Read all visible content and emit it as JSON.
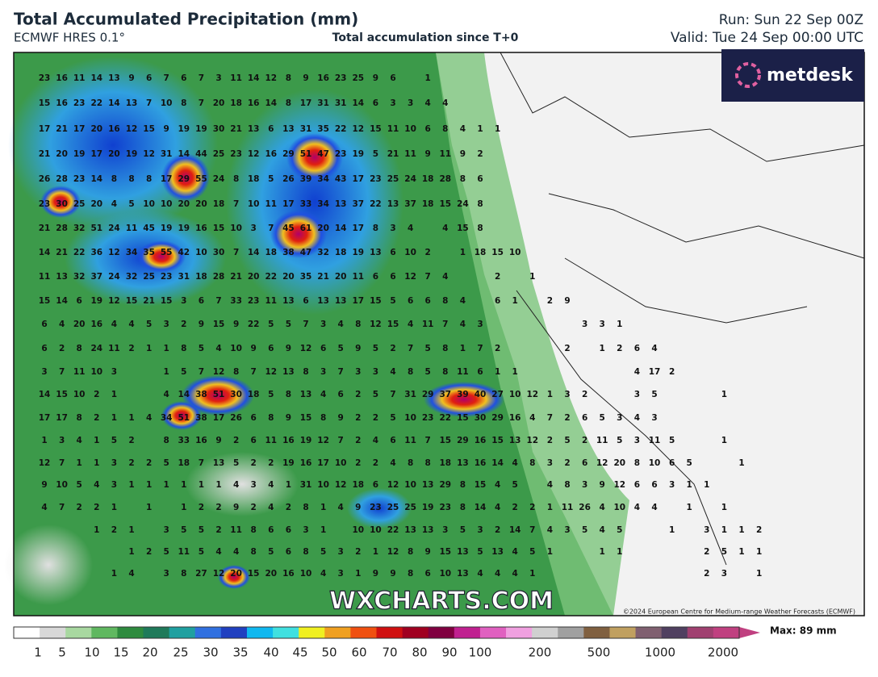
{
  "header": {
    "title": "Total Accumulated Precipitation (mm)",
    "model": "ECMWF HRES 0.1°",
    "subtitle": "Total accumulation since T+0",
    "run": "Run: Sun 22 Sep 00Z",
    "valid": "Valid: Tue 24 Sep 00:00 UTC"
  },
  "logo": "metdesk",
  "watermark": "WXCHARTS.COM",
  "copyright": "©2024 European Centre for Medium-range Weather Forecasts (ECMWF)",
  "legend": {
    "labels": [
      1,
      5,
      10,
      15,
      20,
      25,
      30,
      35,
      40,
      45,
      50,
      60,
      70,
      80,
      90,
      100,
      200,
      500,
      1000,
      2000
    ],
    "max": "Max: 89 mm"
  },
  "grid": {
    "rows": [
      [
        23,
        16,
        11,
        14,
        13,
        9,
        6,
        7,
        6,
        7,
        3,
        11,
        14,
        12,
        8,
        9,
        16,
        23,
        25,
        9,
        6,
        null,
        1
      ],
      [
        15,
        16,
        23,
        22,
        14,
        13,
        7,
        10,
        8,
        7,
        20,
        18,
        16,
        14,
        8,
        17,
        31,
        31,
        14,
        6,
        3,
        3,
        4,
        4
      ],
      [
        17,
        21,
        17,
        20,
        16,
        12,
        15,
        9,
        19,
        19,
        30,
        21,
        13,
        6,
        13,
        31,
        35,
        22,
        12,
        15,
        11,
        10,
        6,
        8,
        4,
        1,
        1
      ],
      [
        21,
        20,
        19,
        17,
        20,
        19,
        12,
        31,
        14,
        44,
        25,
        23,
        12,
        16,
        29,
        51,
        47,
        23,
        19,
        5,
        21,
        11,
        9,
        11,
        9,
        2
      ],
      [
        26,
        28,
        23,
        14,
        8,
        8,
        8,
        17,
        29,
        55,
        24,
        8,
        18,
        5,
        26,
        39,
        34,
        43,
        17,
        23,
        25,
        24,
        18,
        28,
        8,
        6
      ],
      [
        23,
        30,
        25,
        20,
        4,
        5,
        10,
        10,
        20,
        20,
        18,
        7,
        10,
        11,
        17,
        33,
        34,
        13,
        37,
        22,
        13,
        37,
        18,
        15,
        24,
        8
      ],
      [
        21,
        28,
        32,
        51,
        24,
        11,
        45,
        19,
        19,
        16,
        15,
        10,
        3,
        7,
        45,
        61,
        20,
        14,
        17,
        8,
        3,
        4,
        null,
        4,
        15,
        8
      ],
      [
        14,
        21,
        22,
        36,
        12,
        34,
        35,
        55,
        42,
        10,
        30,
        7,
        14,
        18,
        38,
        47,
        32,
        18,
        19,
        13,
        6,
        10,
        2,
        null,
        1,
        18,
        15,
        10
      ],
      [
        11,
        13,
        32,
        37,
        24,
        32,
        25,
        23,
        31,
        18,
        28,
        21,
        20,
        22,
        20,
        35,
        21,
        20,
        11,
        6,
        6,
        12,
        7,
        4,
        null,
        null,
        2,
        null,
        1
      ],
      [
        15,
        14,
        6,
        19,
        12,
        15,
        21,
        15,
        3,
        6,
        7,
        33,
        23,
        11,
        13,
        6,
        13,
        13,
        17,
        15,
        5,
        6,
        6,
        8,
        4,
        null,
        6,
        1,
        null,
        2,
        9
      ],
      [
        6,
        4,
        20,
        16,
        4,
        4,
        5,
        3,
        2,
        9,
        15,
        9,
        22,
        5,
        5,
        7,
        3,
        4,
        8,
        12,
        15,
        4,
        11,
        7,
        4,
        3,
        null,
        null,
        null,
        null,
        null,
        3,
        3,
        1
      ],
      [
        6,
        2,
        8,
        24,
        11,
        2,
        1,
        1,
        8,
        5,
        4,
        10,
        9,
        6,
        9,
        12,
        6,
        5,
        9,
        5,
        2,
        7,
        5,
        8,
        1,
        7,
        2,
        null,
        null,
        null,
        2,
        null,
        1,
        2,
        6,
        4
      ],
      [
        3,
        7,
        11,
        10,
        3,
        null,
        null,
        1,
        5,
        7,
        12,
        8,
        7,
        12,
        13,
        8,
        3,
        7,
        3,
        3,
        4,
        8,
        5,
        8,
        11,
        6,
        1,
        1,
        null,
        null,
        null,
        null,
        null,
        null,
        4,
        17,
        2
      ],
      [
        14,
        15,
        10,
        2,
        1,
        null,
        null,
        4,
        14,
        38,
        51,
        30,
        18,
        5,
        8,
        13,
        4,
        6,
        2,
        5,
        7,
        31,
        29,
        37,
        39,
        40,
        27,
        10,
        12,
        1,
        3,
        2,
        null,
        null,
        3,
        5,
        null,
        null,
        null,
        1
      ],
      [
        17,
        17,
        8,
        2,
        1,
        1,
        4,
        34,
        51,
        38,
        17,
        26,
        6,
        8,
        9,
        15,
        8,
        9,
        2,
        2,
        5,
        10,
        23,
        22,
        15,
        30,
        29,
        16,
        4,
        7,
        2,
        6,
        5,
        3,
        4,
        3
      ],
      [
        1,
        3,
        4,
        1,
        5,
        2,
        null,
        8,
        33,
        16,
        9,
        2,
        6,
        11,
        16,
        19,
        12,
        7,
        2,
        4,
        6,
        11,
        7,
        15,
        29,
        16,
        15,
        13,
        12,
        2,
        5,
        2,
        11,
        5,
        3,
        11,
        5,
        null,
        null,
        1
      ],
      [
        12,
        7,
        1,
        1,
        3,
        2,
        2,
        5,
        18,
        7,
        13,
        5,
        2,
        2,
        19,
        16,
        17,
        10,
        2,
        2,
        4,
        8,
        8,
        18,
        13,
        16,
        14,
        4,
        8,
        3,
        2,
        6,
        12,
        20,
        8,
        10,
        6,
        5,
        null,
        null,
        1
      ],
      [
        9,
        10,
        5,
        4,
        3,
        1,
        1,
        1,
        1,
        1,
        1,
        4,
        3,
        4,
        1,
        31,
        10,
        12,
        18,
        6,
        12,
        10,
        13,
        29,
        8,
        15,
        4,
        5,
        null,
        4,
        8,
        3,
        9,
        12,
        6,
        6,
        3,
        1,
        1
      ],
      [
        4,
        7,
        2,
        2,
        1,
        null,
        1,
        null,
        1,
        2,
        2,
        9,
        2,
        4,
        2,
        8,
        1,
        4,
        9,
        23,
        25,
        25,
        19,
        23,
        8,
        14,
        4,
        2,
        2,
        1,
        11,
        26,
        4,
        10,
        4,
        4,
        null,
        1,
        null,
        1
      ],
      [
        null,
        null,
        null,
        1,
        2,
        1,
        null,
        3,
        5,
        5,
        2,
        11,
        8,
        6,
        6,
        3,
        1,
        null,
        10,
        10,
        22,
        13,
        13,
        3,
        5,
        3,
        2,
        14,
        7,
        4,
        3,
        5,
        4,
        5,
        null,
        null,
        1,
        null,
        3,
        1,
        1,
        2
      ],
      [
        null,
        null,
        null,
        null,
        null,
        1,
        2,
        5,
        11,
        5,
        4,
        4,
        8,
        5,
        6,
        8,
        5,
        3,
        2,
        1,
        12,
        8,
        9,
        15,
        13,
        5,
        13,
        4,
        5,
        1,
        null,
        null,
        1,
        1,
        null,
        null,
        null,
        null,
        2,
        5,
        1,
        1
      ],
      [
        null,
        null,
        null,
        null,
        1,
        4,
        null,
        3,
        8,
        27,
        12,
        20,
        15,
        20,
        16,
        10,
        4,
        3,
        1,
        9,
        9,
        8,
        6,
        10,
        13,
        4,
        4,
        4,
        1,
        null,
        null,
        null,
        null,
        null,
        null,
        null,
        null,
        null,
        2,
        3,
        null,
        1
      ]
    ]
  }
}
